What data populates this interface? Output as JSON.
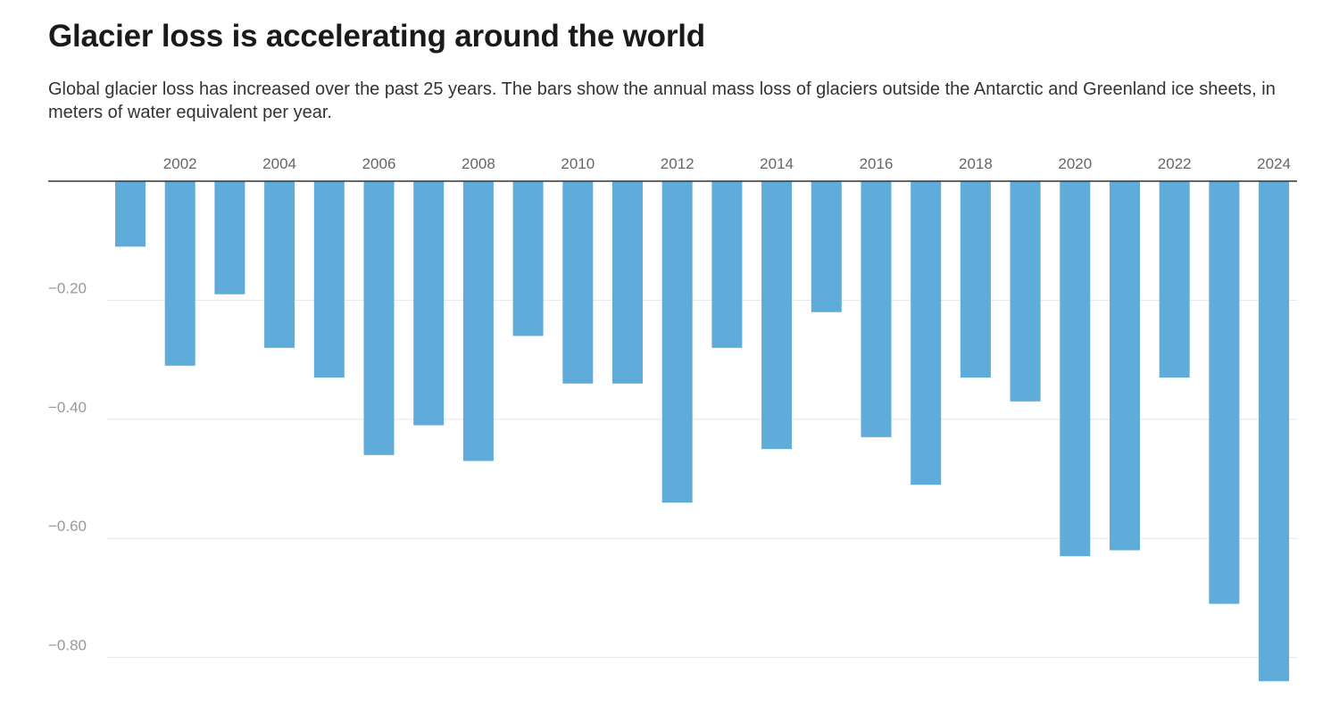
{
  "header": {
    "title": "Glacier loss is accelerating around the world",
    "subtitle": "Global glacier loss has increased over the past 25 years. The bars show the annual mass loss of glaciers outside the Antarctic and Greenland ice sheets, in meters of water equivalent per year."
  },
  "colors": {
    "bar": "#5fabd9",
    "zero_line": "#333333",
    "grid": "#e6e6e6"
  },
  "chart_data": {
    "type": "bar",
    "title": "Glacier loss is accelerating around the world",
    "xlabel": "",
    "ylabel": "",
    "x_axis_position": "top",
    "x_tick_labels": [
      "2002",
      "2004",
      "2006",
      "2008",
      "2010",
      "2012",
      "2014",
      "2016",
      "2018",
      "2020",
      "2022",
      "2024"
    ],
    "y_ticks": [
      -0.2,
      -0.4,
      -0.6,
      -0.8
    ],
    "y_tick_labels": [
      "−0.20",
      "−0.40",
      "−0.60",
      "−0.80"
    ],
    "ylim": [
      -0.85,
      0
    ],
    "grid": true,
    "categories": [
      2001,
      2002,
      2003,
      2004,
      2005,
      2006,
      2007,
      2008,
      2009,
      2010,
      2011,
      2012,
      2013,
      2014,
      2015,
      2016,
      2017,
      2018,
      2019,
      2020,
      2021,
      2022,
      2023,
      2024
    ],
    "values": [
      -0.11,
      -0.31,
      -0.19,
      -0.28,
      -0.33,
      -0.46,
      -0.41,
      -0.47,
      -0.26,
      -0.34,
      -0.34,
      -0.54,
      -0.28,
      -0.45,
      -0.22,
      -0.43,
      -0.51,
      -0.33,
      -0.37,
      -0.63,
      -0.62,
      -0.33,
      -0.71,
      -0.84
    ]
  }
}
